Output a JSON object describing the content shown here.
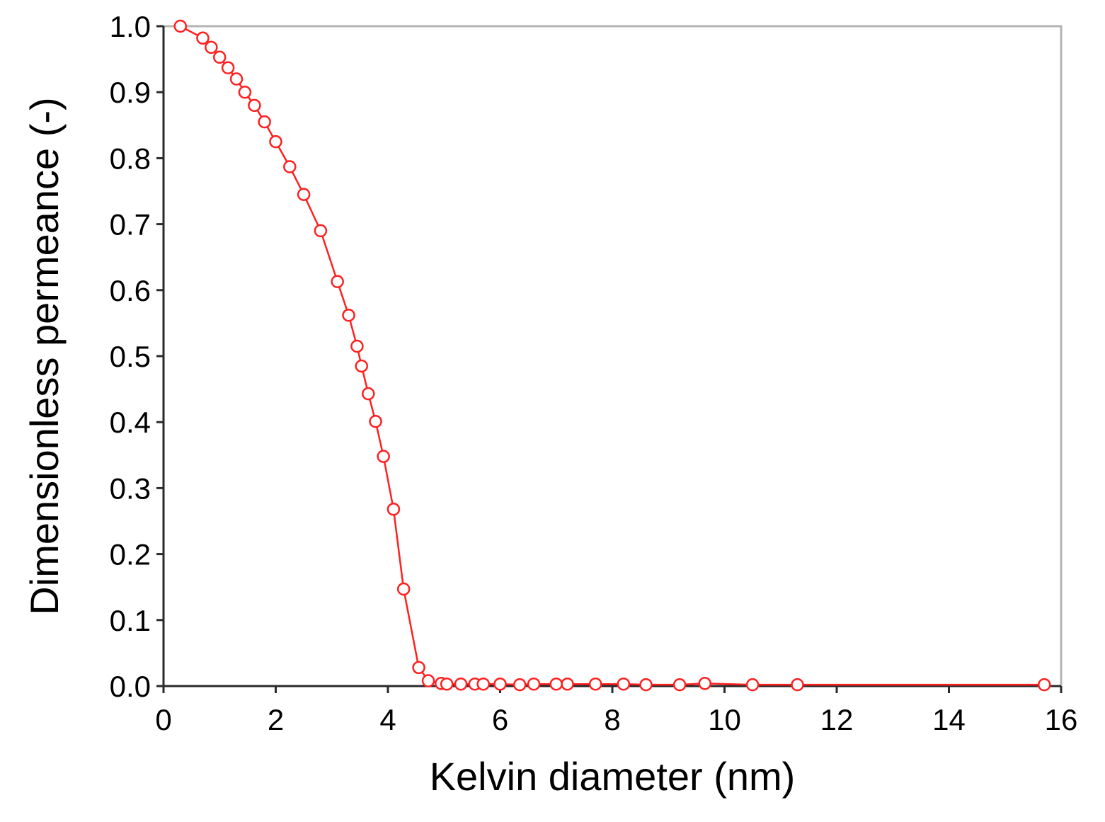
{
  "chart_data": {
    "type": "line",
    "xlabel": "Kelvin diameter (nm)",
    "ylabel": "Dimensionless permeance (-)",
    "xlim": [
      0,
      16
    ],
    "ylim": [
      0,
      1
    ],
    "xticks": [
      0,
      2,
      4,
      6,
      8,
      10,
      12,
      14,
      16
    ],
    "yticks": [
      0.0,
      0.1,
      0.2,
      0.3,
      0.4,
      0.5,
      0.6,
      0.7,
      0.8,
      0.9,
      1.0
    ],
    "xtick_labels": [
      "0",
      "2",
      "4",
      "6",
      "8",
      "10",
      "12",
      "14",
      "16"
    ],
    "ytick_labels": [
      "0.0",
      "0.1",
      "0.2",
      "0.3",
      "0.4",
      "0.5",
      "0.6",
      "0.7",
      "0.8",
      "0.9",
      "1.0"
    ],
    "grid": false,
    "marker": "open-circle",
    "series": [
      {
        "color": "#ff2020",
        "x": [
          0.3,
          0.7,
          0.85,
          1.0,
          1.15,
          1.3,
          1.45,
          1.62,
          1.8,
          2.0,
          2.25,
          2.5,
          2.8,
          3.1,
          3.3,
          3.45,
          3.53,
          3.65,
          3.78,
          3.92,
          4.1,
          4.28,
          4.55,
          4.72,
          4.95,
          5.05,
          5.3,
          5.55,
          5.7,
          6.0,
          6.35,
          6.6,
          7.0,
          7.2,
          7.7,
          8.2,
          8.6,
          9.2,
          9.65,
          10.5,
          11.3,
          15.7
        ],
        "y": [
          1.0,
          0.982,
          0.968,
          0.953,
          0.937,
          0.92,
          0.9,
          0.88,
          0.855,
          0.825,
          0.787,
          0.745,
          0.69,
          0.613,
          0.562,
          0.515,
          0.485,
          0.443,
          0.401,
          0.348,
          0.268,
          0.147,
          0.028,
          0.008,
          0.004,
          0.003,
          0.003,
          0.003,
          0.003,
          0.003,
          0.002,
          0.003,
          0.003,
          0.003,
          0.003,
          0.003,
          0.002,
          0.002,
          0.004,
          0.002,
          0.002,
          0.002
        ]
      }
    ]
  }
}
